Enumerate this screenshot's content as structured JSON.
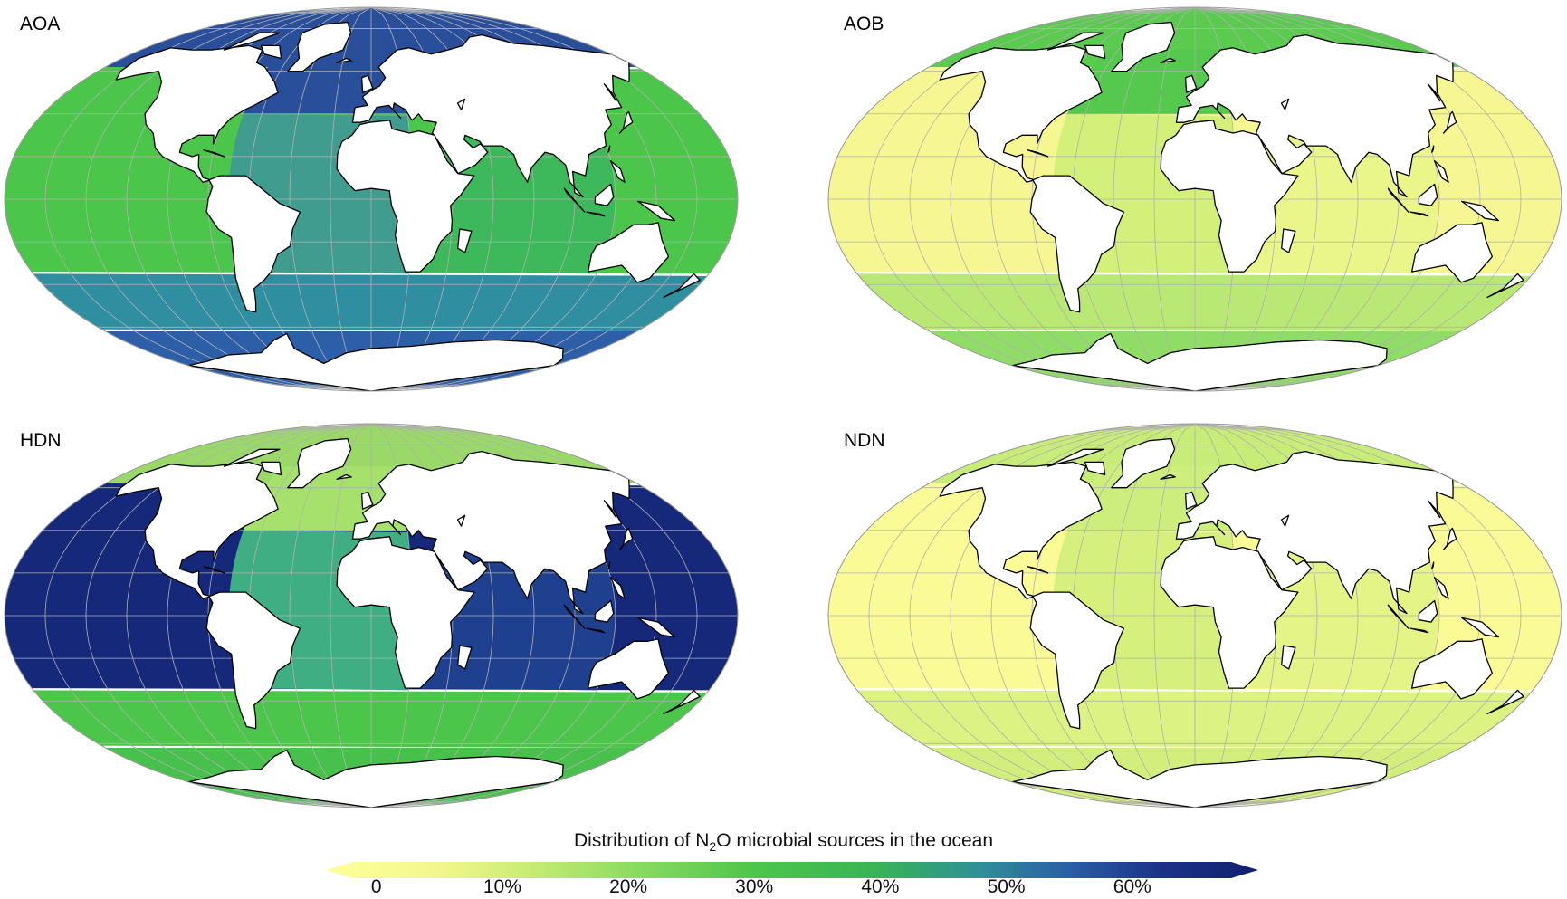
{
  "panels": [
    {
      "id": "aoa",
      "label": "AOA",
      "palette": {
        "north_atlantic": "#2a4f9a",
        "atlantic": "#3f9c8f",
        "pacific_tropic": "#4cc64a",
        "indian": "#3db85a",
        "southern": "#2f8fa0",
        "antarctic_rim": "#2d5fa8",
        "arctic": "#2a4f9a"
      }
    },
    {
      "id": "aob",
      "label": "AOB",
      "palette": {
        "north_atlantic": "#55c94d",
        "atlantic": "#d3f07a",
        "pacific_tropic": "#f6f793",
        "indian": "#eaf68a",
        "southern": "#b9e874",
        "antarctic_rim": "#8fdc66",
        "arctic": "#5acb4f"
      }
    },
    {
      "id": "hdn",
      "label": "HDN",
      "palette": {
        "north_atlantic": "#a6e26b",
        "atlantic": "#3fae82",
        "pacific_tropic": "#16287a",
        "indian": "#1f3f8f",
        "southern": "#4cc64a",
        "antarctic_rim": "#47c04c",
        "arctic": "#9ad968"
      }
    },
    {
      "id": "ndn",
      "label": "NDN",
      "palette": {
        "north_atlantic": "#cdee7c",
        "atlantic": "#d6f07e",
        "pacific_tropic": "#fafb96",
        "indian": "#e4f486",
        "southern": "#dcf282",
        "antarctic_rim": "#d2ef7e",
        "arctic": "#c8ec78"
      }
    }
  ],
  "land_color": "#ffffff",
  "graticule_color": "#b0b0b0",
  "colorbar": {
    "title_pre": "Distribution of N",
    "title_sub": "2",
    "title_post": "O microbial sources in the ocean",
    "ticks": [
      {
        "label": "0",
        "value": 0
      },
      {
        "label": "10%",
        "value": 10
      },
      {
        "label": "20%",
        "value": 20
      },
      {
        "label": "30%",
        "value": 30
      },
      {
        "label": "40%",
        "value": 40
      },
      {
        "label": "50%",
        "value": 50
      },
      {
        "label": "60%",
        "value": 60
      }
    ],
    "range": [
      -4,
      70
    ],
    "stops": [
      {
        "value": -4,
        "color": "#ffff9a"
      },
      {
        "value": 5,
        "color": "#f2f78c"
      },
      {
        "value": 12,
        "color": "#c9ec74"
      },
      {
        "value": 20,
        "color": "#8fdc62"
      },
      {
        "value": 30,
        "color": "#4cc64a"
      },
      {
        "value": 40,
        "color": "#37b357"
      },
      {
        "value": 48,
        "color": "#2f8f98"
      },
      {
        "value": 55,
        "color": "#2b5ea6"
      },
      {
        "value": 62,
        "color": "#1c3488"
      },
      {
        "value": 70,
        "color": "#121f6e"
      }
    ]
  }
}
